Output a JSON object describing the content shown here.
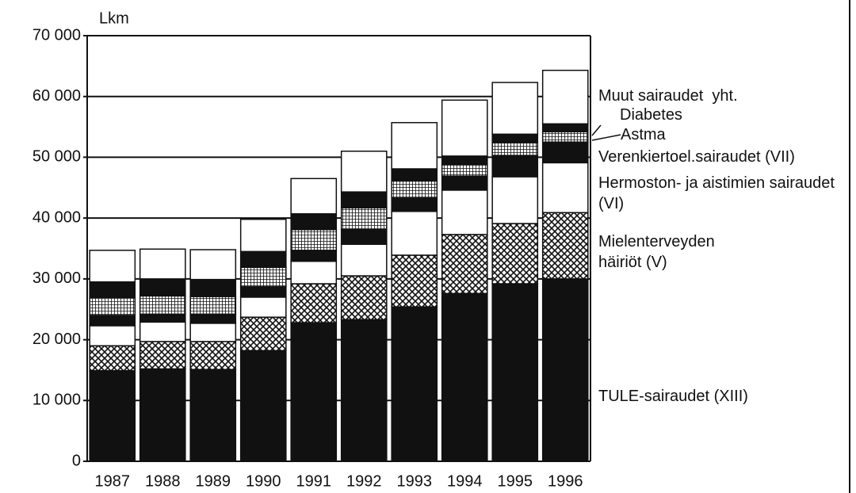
{
  "chart_data": {
    "type": "stacked-bar",
    "y_label": "Lkm",
    "categories": [
      "1987",
      "1988",
      "1989",
      "1990",
      "1991",
      "1992",
      "1993",
      "1994",
      "1995",
      "1996"
    ],
    "series": [
      {
        "name": "TULE-sairaudet (XIII)",
        "color": "#111111",
        "values": [
          14900,
          15200,
          15100,
          18200,
          22800,
          23300,
          25400,
          27600,
          29200,
          30000
        ]
      },
      {
        "name": "Mielenterveyden häiriöt (V)",
        "color": "#111111",
        "pattern": "crosshatch",
        "values": [
          4100,
          4500,
          4600,
          5500,
          6400,
          7200,
          8500,
          9700,
          9900,
          10900
        ]
      },
      {
        "name": "Hermoston- ja aistimien sairaudet (VI)",
        "color": "#ffffff",
        "values": [
          3300,
          3200,
          3000,
          3300,
          3700,
          5200,
          7200,
          7300,
          7700,
          8200
        ]
      },
      {
        "name": "Verenkiertoel.sairaudet (VII)",
        "color": "#111111",
        "values": [
          1700,
          1300,
          1500,
          1700,
          1800,
          2400,
          2200,
          2300,
          3500,
          3400
        ]
      },
      {
        "name": "Astma",
        "color": "#111111",
        "pattern": "grid",
        "values": [
          2900,
          3000,
          2900,
          3200,
          3400,
          3600,
          2800,
          1900,
          2100,
          1700
        ]
      },
      {
        "name": "Diabetes",
        "color": "#111111",
        "values": [
          2600,
          2800,
          2800,
          2600,
          2600,
          2600,
          2000,
          1400,
          1400,
          1300
        ]
      },
      {
        "name": "Muut sairaudet  yht.",
        "color": "#ffffff",
        "values": [
          5200,
          4900,
          4900,
          5300,
          5800,
          6700,
          7600,
          9200,
          8500,
          8800
        ]
      }
    ],
    "ylim": [
      0,
      70000
    ],
    "yticks": [
      0,
      {
        "value": 10000,
        "label": "10 000"
      },
      {
        "value": 20000,
        "label": "20 000"
      },
      {
        "value": 30000,
        "label": "30 000"
      },
      {
        "value": 40000,
        "label": "40 000"
      },
      {
        "value": 50000,
        "label": "50 000"
      },
      {
        "value": 60000,
        "label": "60 000"
      },
      {
        "value": 70000,
        "label": "70 000"
      }
    ],
    "grid": true
  }
}
